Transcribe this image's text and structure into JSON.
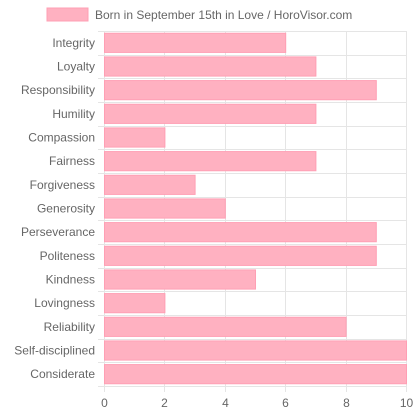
{
  "chart_data": {
    "type": "bar",
    "orientation": "horizontal",
    "categories": [
      "Integrity",
      "Loyalty",
      "Responsibility",
      "Humility",
      "Compassion",
      "Fairness",
      "Forgiveness",
      "Generosity",
      "Perseverance",
      "Politeness",
      "Kindness",
      "Lovingness",
      "Reliability",
      "Self-disciplined",
      "Considerate"
    ],
    "series": [
      {
        "name": "Born in September 15th in Love / HoroVisor.com",
        "values": [
          6,
          7,
          9,
          7,
          2,
          7,
          3,
          4,
          9,
          9,
          5,
          2,
          8,
          10,
          10
        ]
      }
    ],
    "xlim": [
      0,
      10
    ],
    "xticks": [
      "0",
      "2",
      "4",
      "6",
      "8",
      "10"
    ],
    "grid": true,
    "legend": "top",
    "colors": {
      "bar_fill": "#ffb1c1",
      "bar_stroke": "#ff9fb4",
      "grid": "#e5e5e5",
      "text": "#666666"
    }
  }
}
